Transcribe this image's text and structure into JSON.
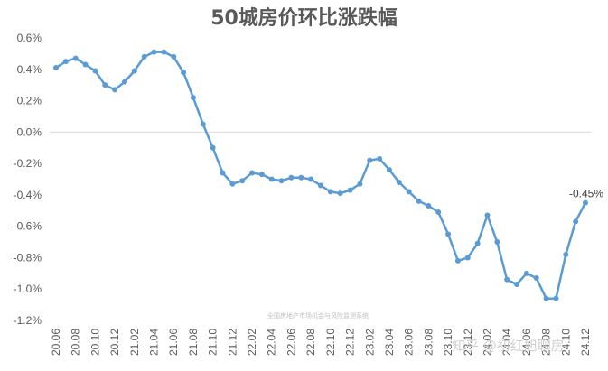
{
  "chart_data": {
    "type": "line",
    "title": "50城房价环比涨跌幅",
    "xlabel": "",
    "ylabel": "",
    "ylim": [
      -1.2,
      0.6
    ],
    "yticks": [
      "0.6%",
      "0.4%",
      "0.2%",
      "0.0%",
      "-0.2%",
      "-0.4%",
      "-0.6%",
      "-0.8%",
      "-1.0%",
      "-1.2%"
    ],
    "xticks": [
      "20.06",
      "20.08",
      "20.10",
      "20.12",
      "21.02",
      "21.04",
      "21.06",
      "21.08",
      "21.10",
      "21.12",
      "22.02",
      "22.04",
      "22.06",
      "22.08",
      "22.10",
      "22.12",
      "23.02",
      "23.04",
      "23.06",
      "23.08",
      "23.10",
      "23.12",
      "24.02",
      "24.04",
      "24.06",
      "24.08",
      "24.10",
      "24.12"
    ],
    "grid": false,
    "color": "#5b9bd5",
    "end_label": "-0.45%",
    "series": [
      {
        "values": [
          0.41,
          0.45,
          0.47,
          0.43,
          0.39,
          0.3,
          0.27,
          0.32,
          0.39,
          0.48,
          0.51,
          0.51,
          0.48,
          0.38,
          0.22,
          0.05,
          -0.1,
          -0.26,
          -0.33,
          -0.31,
          -0.26,
          -0.27,
          -0.3,
          -0.31,
          -0.29,
          -0.29,
          -0.3,
          -0.34,
          -0.38,
          -0.39,
          -0.37,
          -0.33,
          -0.18,
          -0.17,
          -0.24,
          -0.32,
          -0.38,
          -0.44,
          -0.47,
          -0.51,
          -0.65,
          -0.82,
          -0.8,
          -0.71,
          -0.53,
          -0.7,
          -0.94,
          -0.97,
          -0.9,
          -0.93,
          -1.06,
          -1.06,
          -0.78,
          -0.57,
          -0.45
        ]
      }
    ]
  },
  "watermark": {
    "source": "全国房地产市场机会与风险监测系统",
    "zhihu": "知乎 @初红旭聊房"
  }
}
